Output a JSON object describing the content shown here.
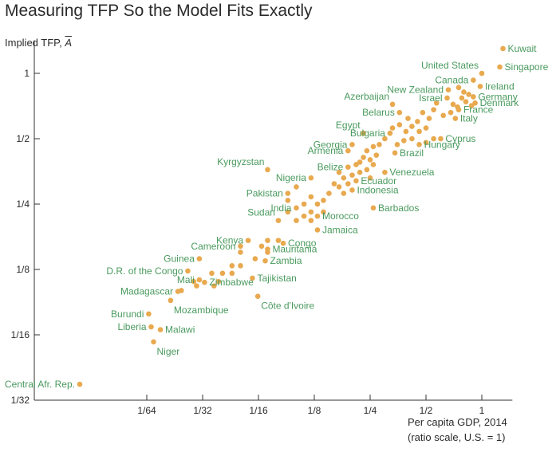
{
  "chart_data": {
    "type": "scatter",
    "title": "Measuring TFP So the Model Fits Exactly",
    "ylabel_prefix": "Implied TFP, ",
    "ylabel_symbol": "A",
    "xlabel_line1": "Per capita GDP, 2014",
    "xlabel_line2": "(ratio scale, U.S. = 1)",
    "x_scale": "log2",
    "y_scale": "log2",
    "xlim": [
      0.0055,
      1.35
    ],
    "ylim": [
      0.03125,
      1.35
    ],
    "x_ticks": [
      {
        "value": 0.015625,
        "label": "1/64"
      },
      {
        "value": 0.03125,
        "label": "1/32"
      },
      {
        "value": 0.0625,
        "label": "1/16"
      },
      {
        "value": 0.125,
        "label": "1/8"
      },
      {
        "value": 0.25,
        "label": "1/4"
      },
      {
        "value": 0.5,
        "label": "1/2"
      },
      {
        "value": 1,
        "label": "1"
      }
    ],
    "y_ticks": [
      {
        "value": 0.03125,
        "label": "1/32"
      },
      {
        "value": 0.0625,
        "label": "1/16"
      },
      {
        "value": 0.125,
        "label": "1/8"
      },
      {
        "value": 0.25,
        "label": "1/4"
      },
      {
        "value": 0.5,
        "label": "1/2"
      },
      {
        "value": 1,
        "label": "1"
      }
    ],
    "grid": false,
    "point_color": "#e8a94f",
    "label_color": "#4a9a5e",
    "labeled_points": [
      {
        "name": "Kuwait",
        "x": 1.3,
        "y": 1.3,
        "label_side": "right"
      },
      {
        "name": "Singapore",
        "x": 1.25,
        "y": 1.07,
        "label_side": "right"
      },
      {
        "name": "United States",
        "x": 1.0,
        "y": 1.0,
        "label_side": "above-left"
      },
      {
        "name": "Canada",
        "x": 0.9,
        "y": 0.93,
        "label_side": "left"
      },
      {
        "name": "Ireland",
        "x": 0.98,
        "y": 0.87,
        "label_side": "right"
      },
      {
        "name": "New Zealand",
        "x": 0.66,
        "y": 0.84,
        "label_side": "left"
      },
      {
        "name": "Israel",
        "x": 0.65,
        "y": 0.77,
        "label_side": "left"
      },
      {
        "name": "Germany",
        "x": 0.9,
        "y": 0.78,
        "label_side": "right"
      },
      {
        "name": "Denmark",
        "x": 0.92,
        "y": 0.73,
        "label_side": "right"
      },
      {
        "name": "Azerbaijan",
        "x": 0.33,
        "y": 0.72,
        "label_side": "above-left"
      },
      {
        "name": "Belarus",
        "x": 0.36,
        "y": 0.66,
        "label_side": "left"
      },
      {
        "name": "France",
        "x": 0.75,
        "y": 0.68,
        "label_side": "right"
      },
      {
        "name": "Italy",
        "x": 0.72,
        "y": 0.62,
        "label_side": "right"
      },
      {
        "name": "Egypt",
        "x": 0.23,
        "y": 0.53,
        "label_side": "above-left"
      },
      {
        "name": "Bulgaria",
        "x": 0.32,
        "y": 0.53,
        "label_side": "left"
      },
      {
        "name": "Cyprus",
        "x": 0.6,
        "y": 0.5,
        "label_side": "right"
      },
      {
        "name": "Hungary",
        "x": 0.46,
        "y": 0.47,
        "label_side": "right"
      },
      {
        "name": "Georgia",
        "x": 0.2,
        "y": 0.47,
        "label_side": "left"
      },
      {
        "name": "Armenia",
        "x": 0.19,
        "y": 0.44,
        "label_side": "left"
      },
      {
        "name": "Brazil",
        "x": 0.34,
        "y": 0.43,
        "label_side": "right"
      },
      {
        "name": "Kyrgyzstan",
        "x": 0.07,
        "y": 0.36,
        "label_side": "above-left"
      },
      {
        "name": "Belize",
        "x": 0.19,
        "y": 0.37,
        "label_side": "left"
      },
      {
        "name": "Venezuela",
        "x": 0.3,
        "y": 0.35,
        "label_side": "right"
      },
      {
        "name": "Nigeria",
        "x": 0.12,
        "y": 0.33,
        "label_side": "left"
      },
      {
        "name": "Ecuador",
        "x": 0.21,
        "y": 0.32,
        "label_side": "right"
      },
      {
        "name": "Indonesia",
        "x": 0.2,
        "y": 0.29,
        "label_side": "right"
      },
      {
        "name": "Pakistan",
        "x": 0.09,
        "y": 0.28,
        "label_side": "left"
      },
      {
        "name": "India",
        "x": 0.1,
        "y": 0.24,
        "label_side": "left"
      },
      {
        "name": "Barbados",
        "x": 0.26,
        "y": 0.24,
        "label_side": "right"
      },
      {
        "name": "Sudan",
        "x": 0.08,
        "y": 0.21,
        "label_side": "above-left"
      },
      {
        "name": "Morocco",
        "x": 0.13,
        "y": 0.22,
        "label_side": "right"
      },
      {
        "name": "Jamaica",
        "x": 0.13,
        "y": 0.19,
        "label_side": "right"
      },
      {
        "name": "Kenya",
        "x": 0.055,
        "y": 0.17,
        "label_side": "left"
      },
      {
        "name": "Cameroon",
        "x": 0.05,
        "y": 0.16,
        "label_side": "left"
      },
      {
        "name": "Congo",
        "x": 0.085,
        "y": 0.165,
        "label_side": "right"
      },
      {
        "name": "Mauritania",
        "x": 0.07,
        "y": 0.155,
        "label_side": "right"
      },
      {
        "name": "Zambia",
        "x": 0.068,
        "y": 0.137,
        "label_side": "right"
      },
      {
        "name": "Guinea",
        "x": 0.03,
        "y": 0.14,
        "label_side": "left"
      },
      {
        "name": "D.R. of the Congo",
        "x": 0.026,
        "y": 0.123,
        "label_side": "left"
      },
      {
        "name": "Mali",
        "x": 0.03,
        "y": 0.112,
        "label_side": "left"
      },
      {
        "name": "Zimbabwe",
        "x": 0.032,
        "y": 0.109,
        "label_side": "right"
      },
      {
        "name": "Tajikistan",
        "x": 0.058,
        "y": 0.114,
        "label_side": "right"
      },
      {
        "name": "Madagascar",
        "x": 0.023,
        "y": 0.099,
        "label_side": "left"
      },
      {
        "name": "Mozambique",
        "x": 0.021,
        "y": 0.09,
        "label_side": "below-right"
      },
      {
        "name": "Côte d'Ivoire",
        "x": 0.062,
        "y": 0.094,
        "label_side": "below-right"
      },
      {
        "name": "Burundi",
        "x": 0.016,
        "y": 0.078,
        "label_side": "left"
      },
      {
        "name": "Liberia",
        "x": 0.0165,
        "y": 0.068,
        "label_side": "left"
      },
      {
        "name": "Malawi",
        "x": 0.0185,
        "y": 0.066,
        "label_side": "right"
      },
      {
        "name": "Niger",
        "x": 0.017,
        "y": 0.058,
        "label_side": "below-right"
      },
      {
        "name": "Central Afr. Rep.",
        "x": 0.0068,
        "y": 0.037,
        "label_side": "left"
      }
    ],
    "other_points": [
      [
        0.75,
        0.86
      ],
      [
        0.8,
        0.82
      ],
      [
        0.85,
        0.8
      ],
      [
        0.78,
        0.77
      ],
      [
        0.82,
        0.74
      ],
      [
        0.7,
        0.72
      ],
      [
        0.88,
        0.71
      ],
      [
        0.74,
        0.7
      ],
      [
        0.68,
        0.66
      ],
      [
        0.62,
        0.64
      ],
      [
        0.57,
        0.73
      ],
      [
        0.55,
        0.68
      ],
      [
        0.52,
        0.62
      ],
      [
        0.48,
        0.66
      ],
      [
        0.45,
        0.6
      ],
      [
        0.42,
        0.57
      ],
      [
        0.4,
        0.62
      ],
      [
        0.5,
        0.56
      ],
      [
        0.46,
        0.54
      ],
      [
        0.39,
        0.54
      ],
      [
        0.36,
        0.58
      ],
      [
        0.33,
        0.56
      ],
      [
        0.55,
        0.5
      ],
      [
        0.5,
        0.48
      ],
      [
        0.42,
        0.5
      ],
      [
        0.38,
        0.49
      ],
      [
        0.35,
        0.47
      ],
      [
        0.3,
        0.5
      ],
      [
        0.28,
        0.47
      ],
      [
        0.26,
        0.46
      ],
      [
        0.24,
        0.44
      ],
      [
        0.27,
        0.42
      ],
      [
        0.25,
        0.4
      ],
      [
        0.23,
        0.41
      ],
      [
        0.22,
        0.39
      ],
      [
        0.21,
        0.38
      ],
      [
        0.26,
        0.38
      ],
      [
        0.24,
        0.36
      ],
      [
        0.22,
        0.35
      ],
      [
        0.2,
        0.34
      ],
      [
        0.18,
        0.33
      ],
      [
        0.17,
        0.35
      ],
      [
        0.25,
        0.33
      ],
      [
        0.19,
        0.31
      ],
      [
        0.17,
        0.3
      ],
      [
        0.16,
        0.31
      ],
      [
        0.18,
        0.28
      ],
      [
        0.15,
        0.28
      ],
      [
        0.14,
        0.26
      ],
      [
        0.12,
        0.27
      ],
      [
        0.11,
        0.25
      ],
      [
        0.13,
        0.25
      ],
      [
        0.12,
        0.23
      ],
      [
        0.11,
        0.22
      ],
      [
        0.14,
        0.23
      ],
      [
        0.1,
        0.21
      ],
      [
        0.09,
        0.23
      ],
      [
        0.12,
        0.21
      ],
      [
        0.1,
        0.3
      ],
      [
        0.09,
        0.26
      ],
      [
        0.07,
        0.17
      ],
      [
        0.08,
        0.17
      ],
      [
        0.065,
        0.16
      ],
      [
        0.07,
        0.15
      ],
      [
        0.06,
        0.14
      ],
      [
        0.05,
        0.15
      ],
      [
        0.045,
        0.13
      ],
      [
        0.05,
        0.13
      ],
      [
        0.04,
        0.12
      ],
      [
        0.045,
        0.12
      ],
      [
        0.035,
        0.12
      ],
      [
        0.038,
        0.11
      ],
      [
        0.028,
        0.11
      ],
      [
        0.029,
        0.105
      ],
      [
        0.036,
        0.105
      ],
      [
        0.024,
        0.1
      ]
    ]
  }
}
